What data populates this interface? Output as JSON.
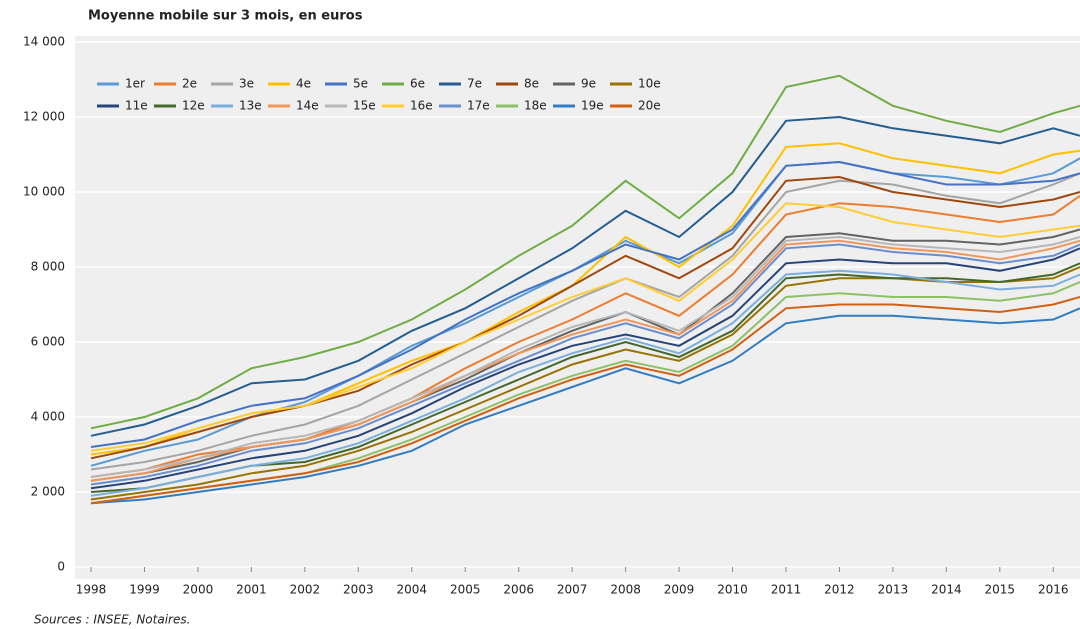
{
  "chart_data": {
    "type": "line",
    "title": "Moyenne mobile sur 3 mois, en euros",
    "source": "Sources : INSEE, Notaires.",
    "x": [
      1998,
      1999,
      2000,
      2001,
      2002,
      2003,
      2004,
      2005,
      2006,
      2007,
      2008,
      2009,
      2010,
      2011,
      2012,
      2013,
      2014,
      2015,
      2016,
      2016.5
    ],
    "xlim": [
      1997.7,
      2016.5
    ],
    "xticks": [
      1998,
      1999,
      2000,
      2001,
      2002,
      2003,
      2004,
      2005,
      2006,
      2007,
      2008,
      2009,
      2010,
      2011,
      2012,
      2013,
      2014,
      2015,
      2016
    ],
    "ylim": [
      0,
      14000
    ],
    "yticks": [
      0,
      {
        "value": 2000,
        "label": "2 000"
      },
      {
        "value": 4000,
        "label": "4 000"
      },
      {
        "value": 6000,
        "label": "6 000"
      },
      {
        "value": 8000,
        "label": "8 000"
      },
      {
        "value": 10000,
        "label": "10 000"
      },
      {
        "value": 12000,
        "label": "12 000"
      },
      {
        "value": 14000,
        "label": "14 000"
      }
    ],
    "grid": true,
    "legend": "top-left",
    "series": [
      {
        "name": "1er",
        "color": "#5b9bd5",
        "values": [
          2700,
          3100,
          3400,
          4000,
          4400,
          5100,
          5900,
          6500,
          7200,
          7900,
          8700,
          8100,
          8900,
          10700,
          10800,
          10500,
          10400,
          10200,
          10500,
          10900
        ]
      },
      {
        "name": "2e",
        "color": "#ed7d31",
        "values": [
          2400,
          2600,
          3000,
          3200,
          3400,
          3900,
          4500,
          5300,
          6000,
          6600,
          7300,
          6700,
          7800,
          9400,
          9700,
          9600,
          9400,
          9200,
          9400,
          9900
        ]
      },
      {
        "name": "3e",
        "color": "#a5a5a5",
        "values": [
          2600,
          2800,
          3100,
          3500,
          3800,
          4300,
          5000,
          5700,
          6400,
          7100,
          7700,
          7200,
          8300,
          10000,
          10300,
          10200,
          9900,
          9700,
          10200,
          10500
        ]
      },
      {
        "name": "4e",
        "color": "#ffc000",
        "values": [
          3000,
          3200,
          3700,
          4100,
          4300,
          4900,
          5500,
          6000,
          6800,
          7500,
          8800,
          8000,
          9100,
          11200,
          11300,
          10900,
          10700,
          10500,
          11000,
          11100
        ]
      },
      {
        "name": "5e",
        "color": "#4472c4",
        "values": [
          3200,
          3400,
          3900,
          4300,
          4500,
          5100,
          5800,
          6600,
          7300,
          7900,
          8600,
          8200,
          9000,
          10700,
          10800,
          10500,
          10200,
          10200,
          10300,
          10500
        ]
      },
      {
        "name": "6e",
        "color": "#70ad47",
        "values": [
          3700,
          4000,
          4500,
          5300,
          5600,
          6000,
          6600,
          7400,
          8300,
          9100,
          10300,
          9300,
          10500,
          12800,
          13100,
          12300,
          11900,
          11600,
          12100,
          12300
        ]
      },
      {
        "name": "7e",
        "color": "#255e91",
        "values": [
          3500,
          3800,
          4300,
          4900,
          5000,
          5500,
          6300,
          6900,
          7700,
          8500,
          9500,
          8800,
          10000,
          11900,
          12000,
          11700,
          11500,
          11300,
          11700,
          11500
        ]
      },
      {
        "name": "8e",
        "color": "#9e480e",
        "values": [
          2900,
          3200,
          3600,
          4000,
          4300,
          4700,
          5400,
          6000,
          6700,
          7500,
          8300,
          7700,
          8500,
          10300,
          10400,
          10000,
          9800,
          9600,
          9800,
          10000
        ]
      },
      {
        "name": "9e",
        "color": "#636363",
        "values": [
          2300,
          2500,
          2800,
          3200,
          3400,
          3800,
          4400,
          5000,
          5700,
          6300,
          6800,
          6200,
          7300,
          8800,
          8900,
          8700,
          8700,
          8600,
          8800,
          9000
        ]
      },
      {
        "name": "10e",
        "color": "#997300",
        "values": [
          1800,
          2000,
          2200,
          2500,
          2700,
          3100,
          3600,
          4200,
          4800,
          5400,
          5800,
          5500,
          6200,
          7500,
          7700,
          7700,
          7600,
          7600,
          7700,
          8000
        ]
      },
      {
        "name": "11e",
        "color": "#264478",
        "values": [
          2100,
          2300,
          2600,
          2900,
          3100,
          3500,
          4100,
          4800,
          5400,
          5900,
          6200,
          5900,
          6700,
          8100,
          8200,
          8100,
          8100,
          7900,
          8200,
          8500
        ]
      },
      {
        "name": "12e",
        "color": "#43682b",
        "values": [
          2000,
          2100,
          2400,
          2700,
          2800,
          3200,
          3800,
          4400,
          5000,
          5600,
          6000,
          5600,
          6300,
          7700,
          7800,
          7700,
          7700,
          7600,
          7800,
          8100
        ]
      },
      {
        "name": "13e",
        "color": "#7cafdd",
        "values": [
          1900,
          2100,
          2400,
          2700,
          2900,
          3300,
          3900,
          4500,
          5200,
          5700,
          6100,
          5700,
          6500,
          7800,
          7900,
          7800,
          7600,
          7400,
          7500,
          7800
        ]
      },
      {
        "name": "14e",
        "color": "#f1975a",
        "values": [
          2300,
          2500,
          2900,
          3200,
          3400,
          3800,
          4400,
          5100,
          5700,
          6200,
          6600,
          6200,
          7100,
          8600,
          8700,
          8500,
          8400,
          8200,
          8500,
          8700
        ]
      },
      {
        "name": "15e",
        "color": "#b7b7b7",
        "values": [
          2400,
          2600,
          2900,
          3300,
          3500,
          3900,
          4500,
          5100,
          5800,
          6400,
          6800,
          6300,
          7200,
          8700,
          8800,
          8600,
          8500,
          8400,
          8600,
          8800
        ]
      },
      {
        "name": "16e",
        "color": "#ffcd33",
        "values": [
          3100,
          3300,
          3700,
          4100,
          4300,
          4800,
          5300,
          6000,
          6600,
          7200,
          7700,
          7100,
          8200,
          9700,
          9600,
          9200,
          9000,
          8800,
          9000,
          9100
        ]
      },
      {
        "name": "17e",
        "color": "#698ed0",
        "values": [
          2200,
          2400,
          2700,
          3100,
          3300,
          3700,
          4300,
          4900,
          5500,
          6100,
          6500,
          6100,
          7000,
          8500,
          8600,
          8400,
          8300,
          8100,
          8300,
          8600
        ]
      },
      {
        "name": "18e",
        "color": "#8cc168",
        "values": [
          1700,
          1900,
          2100,
          2300,
          2500,
          2900,
          3400,
          4000,
          4600,
          5100,
          5500,
          5200,
          5900,
          7200,
          7300,
          7200,
          7200,
          7100,
          7300,
          7600
        ]
      },
      {
        "name": "19e",
        "color": "#327dc2",
        "values": [
          1700,
          1800,
          2000,
          2200,
          2400,
          2700,
          3100,
          3800,
          4300,
          4800,
          5300,
          4900,
          5500,
          6500,
          6700,
          6700,
          6600,
          6500,
          6600,
          6900
        ]
      },
      {
        "name": "20e",
        "color": "#d26012",
        "values": [
          1700,
          1900,
          2100,
          2300,
          2500,
          2800,
          3300,
          3900,
          4500,
          5000,
          5400,
          5100,
          5800,
          6900,
          7000,
          7000,
          6900,
          6800,
          7000,
          7200
        ]
      }
    ]
  }
}
